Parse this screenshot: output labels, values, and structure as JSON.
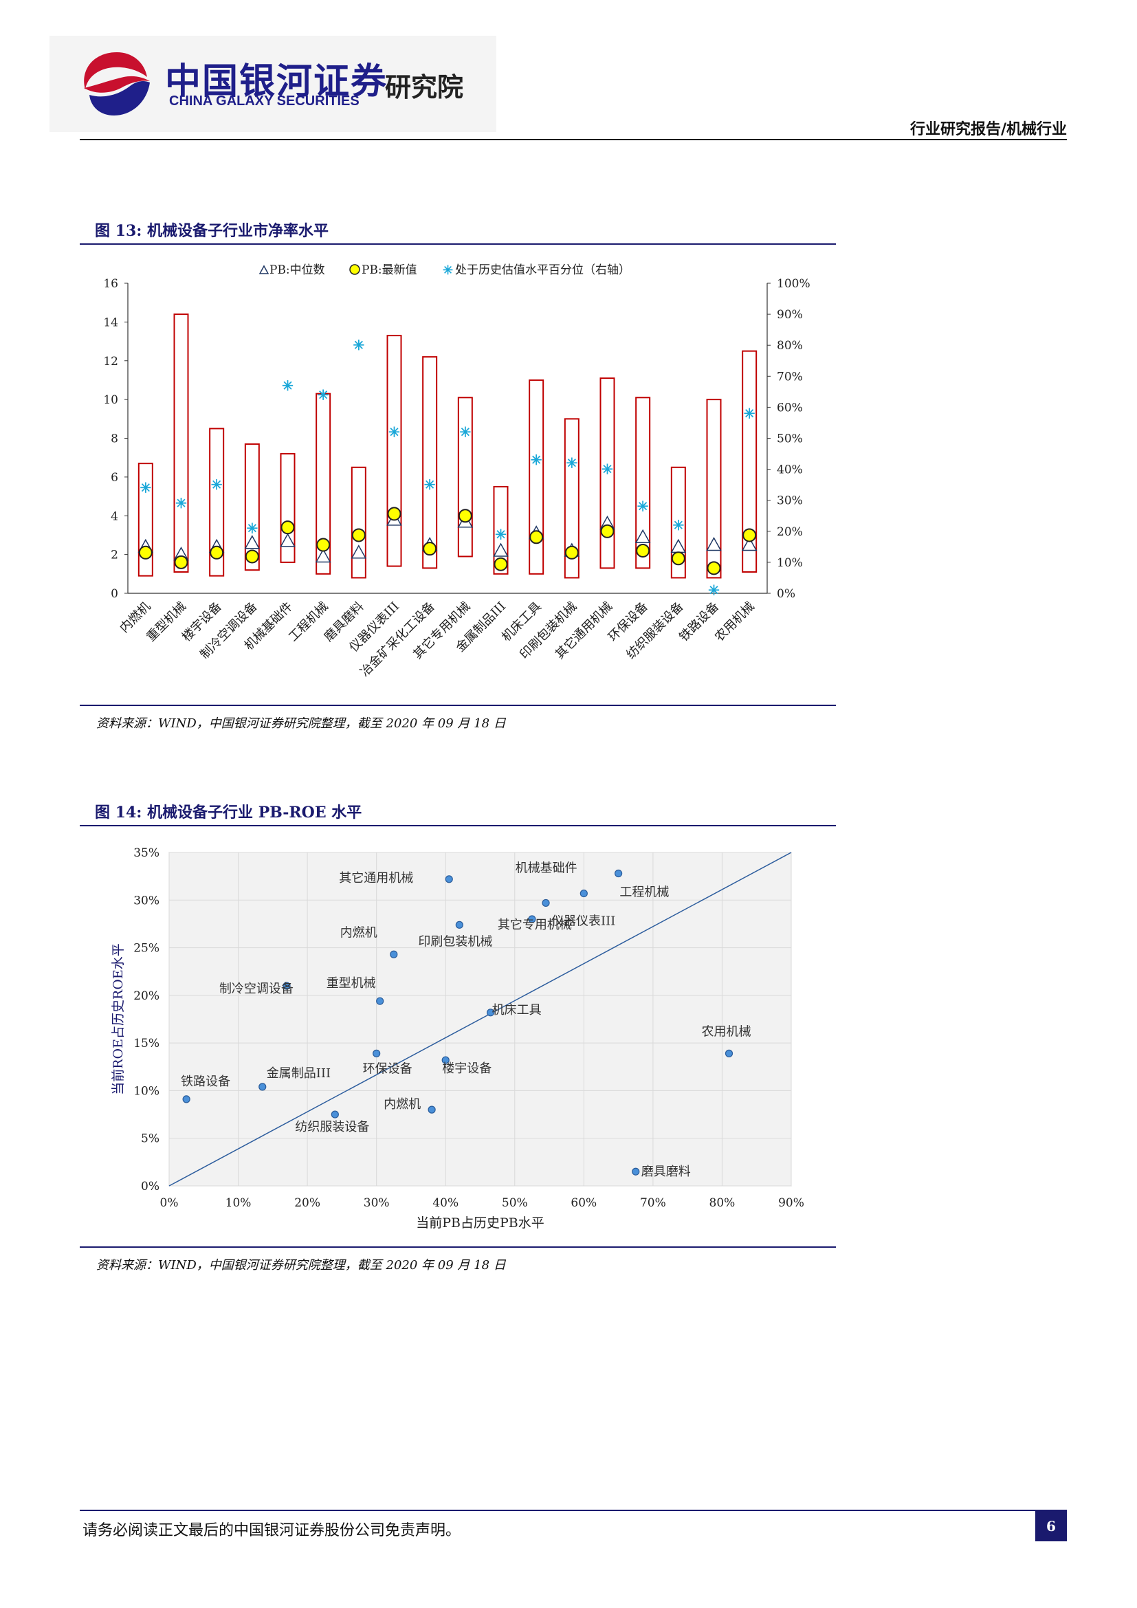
{
  "header": {
    "company_cn": "中国银河证券",
    "company_en": "CHINA GALAXY SECURITIES",
    "institute": "研究院",
    "report_type": "行业研究报告/机械行业"
  },
  "figure13": {
    "title": "图 13:  机械设备子行业市净率水平",
    "source": "资料来源：WIND，中国银河证券研究院整理，截至 2020 年 09 月 18 日",
    "chart_data": {
      "type": "box-scatter",
      "legend": [
        "PB:中位数",
        "PB:最新值",
        "处于历史估值水平百分位（右轴）"
      ],
      "categories": [
        "内燃机",
        "重型机械",
        "楼宇设备",
        "制冷空调设备",
        "机械基础件",
        "工程机械",
        "磨具磨料",
        "仪器仪表III",
        "冶金矿采化工设备",
        "其它专用机械",
        "金属制品III",
        "机床工具",
        "印刷包装机械",
        "其它通用机械",
        "环保设备",
        "纺织服装设备",
        "铁路设备",
        "农用机械"
      ],
      "pb_max": [
        6.7,
        14.4,
        8.5,
        7.7,
        7.2,
        10.3,
        6.5,
        13.3,
        12.2,
        10.1,
        5.5,
        11.0,
        9.0,
        11.1,
        10.1,
        6.5,
        10.0,
        12.5
      ],
      "pb_min": [
        0.9,
        1.1,
        0.9,
        1.2,
        1.6,
        1.0,
        0.8,
        1.4,
        1.3,
        1.9,
        1.0,
        1.0,
        0.8,
        1.3,
        1.3,
        0.8,
        0.8,
        1.1
      ],
      "pb_median": [
        2.4,
        2.0,
        2.4,
        2.6,
        2.7,
        1.9,
        2.1,
        3.8,
        2.5,
        3.7,
        2.2,
        3.1,
        2.2,
        3.6,
        2.9,
        2.4,
        2.5,
        2.5
      ],
      "pb_latest": [
        2.1,
        1.6,
        2.1,
        1.9,
        3.4,
        2.5,
        3.0,
        4.1,
        2.3,
        4.0,
        1.5,
        2.9,
        2.1,
        3.2,
        2.2,
        1.8,
        1.3,
        3.0
      ],
      "percentile": [
        34,
        29,
        35,
        21,
        67,
        64,
        80,
        52,
        35,
        52,
        19,
        43,
        42,
        40,
        28,
        22,
        1,
        58
      ],
      "y_left_range": [
        0,
        16
      ],
      "y_left_ticks": [
        "0",
        "2",
        "4",
        "6",
        "8",
        "10",
        "12",
        "14",
        "16"
      ],
      "y_right_range": [
        0,
        100
      ],
      "y_right_ticks": [
        "0%",
        "10%",
        "20%",
        "30%",
        "40%",
        "50%",
        "60%",
        "70%",
        "80%",
        "90%",
        "100%"
      ],
      "colors": {
        "box": "#c00000",
        "median": "#203864",
        "latest": "#ffff00",
        "percentile": "#1aa7d8"
      }
    }
  },
  "figure14": {
    "title": "图 14:  机械设备子行业 PB-ROE 水平",
    "source": "资料来源：WIND，中国银河证券研究院整理，截至 2020 年 09 月 18 日",
    "chart_data": {
      "type": "scatter",
      "xlabel": "当前PB占历史PB水平",
      "ylabel": "当前ROE占历史ROE水平",
      "xlim": [
        0,
        90
      ],
      "ylim": [
        0,
        35
      ],
      "x_ticks": [
        "0%",
        "10%",
        "20%",
        "30%",
        "40%",
        "50%",
        "60%",
        "70%",
        "80%",
        "90%"
      ],
      "y_ticks": [
        "0%",
        "5%",
        "10%",
        "15%",
        "20%",
        "25%",
        "30%",
        "35%"
      ],
      "points": [
        {
          "label": "其它通用机械",
          "x": 40.5,
          "y": 32.2
        },
        {
          "label": "机械基础件",
          "x": 65,
          "y": 32.8
        },
        {
          "label": "工程机械",
          "x": 60,
          "y": 30.7
        },
        {
          "label": "仪器仪表III",
          "x": 54.5,
          "y": 29.7
        },
        {
          "label": "其它专用机械",
          "x": 52.5,
          "y": 28.0
        },
        {
          "label": "印刷包装机械",
          "x": 42,
          "y": 27.4
        },
        {
          "label": "内燃机",
          "x": 32.5,
          "y": 24.3
        },
        {
          "label": "制冷空调设备",
          "x": 17,
          "y": 21.0
        },
        {
          "label": "重型机械",
          "x": 30.5,
          "y": 19.4
        },
        {
          "label": "机床工具",
          "x": 46.5,
          "y": 18.2
        },
        {
          "label": "农用机械",
          "x": 81,
          "y": 13.9
        },
        {
          "label": "环保设备",
          "x": 30,
          "y": 13.9
        },
        {
          "label": "楼宇设备",
          "x": 40,
          "y": 13.2
        },
        {
          "label": "金属制品III",
          "x": 13.5,
          "y": 10.4
        },
        {
          "label": "铁路设备",
          "x": 2.5,
          "y": 9.1
        },
        {
          "label": "内燃机",
          "x": 38,
          "y": 8.0
        },
        {
          "label": "纺织服装设备",
          "x": 24,
          "y": 7.5
        },
        {
          "label": "磨具磨料",
          "x": 67.5,
          "y": 1.5
        }
      ],
      "reference_line": {
        "from": [
          0,
          0
        ],
        "to": [
          90,
          35
        ]
      },
      "colors": {
        "marker": "#4a90d9",
        "line": "#2e5e9e",
        "grid": "#d9d9d9",
        "plot_bg": "#f2f2f2"
      }
    }
  },
  "footer": {
    "disclaimer": "请务必阅读正文最后的中国银河证券股份公司免责声明。",
    "page": "6"
  }
}
